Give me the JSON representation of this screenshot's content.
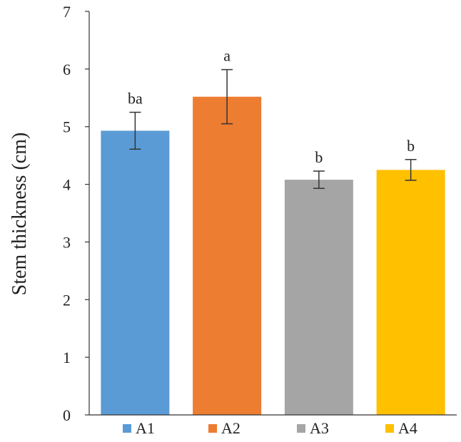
{
  "chart_data": {
    "type": "bar",
    "title": "",
    "xlabel": "",
    "ylabel": "Stem thickness (cm)",
    "ylim": [
      0,
      7
    ],
    "yticks": [
      0,
      1,
      2,
      3,
      4,
      5,
      6,
      7
    ],
    "grid": false,
    "legend_position": "bottom",
    "categories": [
      "A1",
      "A2",
      "A3",
      "A4"
    ],
    "values": [
      4.93,
      5.52,
      4.08,
      4.25
    ],
    "error": [
      0.32,
      0.47,
      0.15,
      0.18
    ],
    "significance_labels": [
      "ba",
      "a",
      "b",
      "b"
    ],
    "colors": [
      "#5b9bd5",
      "#ed7d31",
      "#a5a5a5",
      "#ffc000"
    ]
  }
}
